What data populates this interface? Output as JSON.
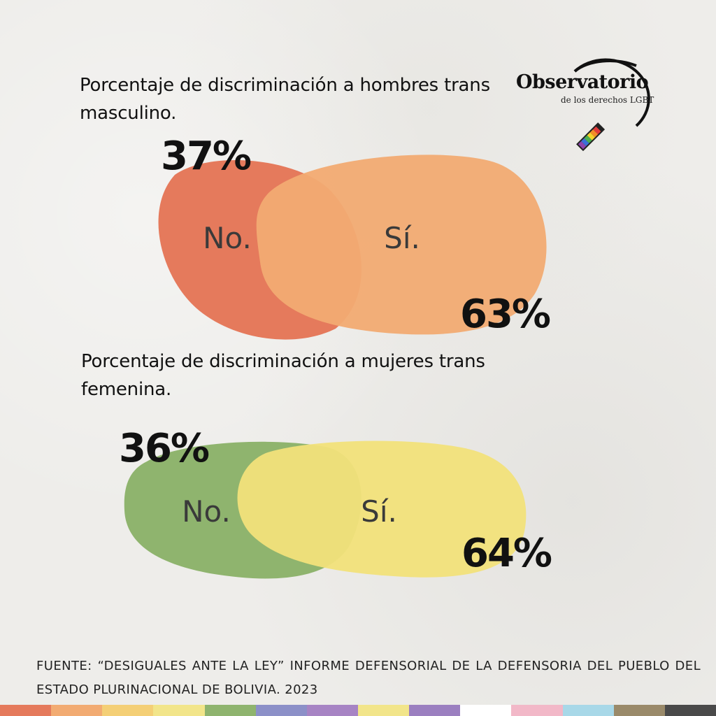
{
  "chart_data": [
    {
      "type": "venn",
      "title": "Porcentaje de discriminación a hombres trans masculino.",
      "categories": [
        "No.",
        "Sí."
      ],
      "values": [
        37,
        63
      ],
      "value_labels": [
        "37%",
        "63%"
      ],
      "colors": [
        "#e57a5c",
        "#f2ab72"
      ]
    },
    {
      "type": "venn",
      "title": "Porcentaje de discriminación a mujeres trans femenina.",
      "categories": [
        "No.",
        "Sí."
      ],
      "values": [
        36,
        64
      ],
      "value_labels": [
        "36%",
        "64%"
      ],
      "colors": [
        "#8fb46e",
        "#f2e17a"
      ]
    }
  ],
  "logo": {
    "title": "Observatorio",
    "subtitle": "de los derechos LGBT",
    "icon": "magnifier-rainbow-icon"
  },
  "source": "FUENTE: “DESIGUALES ANTE LA LEY” INFORME DEFENSORIAL DE LA DEFENSORIA DEL PUEBLO DEL ESTADO PLURINACIONAL DE BOLIVIA. 2023",
  "stripe_colors": [
    "#e57a5c",
    "#f2ab72",
    "#f4cf76",
    "#f2e58a",
    "#8fb46e",
    "#8c90c8",
    "#a784c4",
    "#f2e58a",
    "#9b7fc0",
    "#ffffff",
    "#f2b8c8",
    "#a8d8e8",
    "#9a8a6a",
    "#4a4a4a"
  ]
}
